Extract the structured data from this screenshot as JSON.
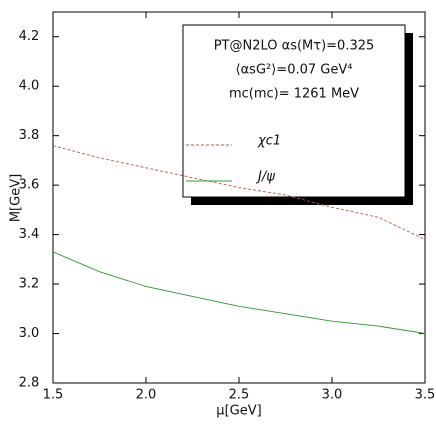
{
  "chart_data": {
    "type": "line",
    "x_label": "μ[GeV]",
    "y_label": "M[GeV]",
    "legend_text": [
      "PT@N2LO αs(Mτ)=0.325",
      "⟨αsG²⟩=0.07 GeV⁴",
      "mc(mc)= 1261 MeV"
    ],
    "x": [
      1.5,
      1.75,
      2.0,
      2.25,
      2.5,
      2.75,
      3.0,
      3.25,
      3.5
    ],
    "series": [
      {
        "name": "χc1",
        "color": "#b85c50",
        "dashed": true,
        "values": [
          3.76,
          3.71,
          3.67,
          3.63,
          3.59,
          3.56,
          3.51,
          3.47,
          3.38
        ]
      },
      {
        "name": "J/ψ",
        "color": "#2a9a2a",
        "dashed": false,
        "values": [
          3.33,
          3.25,
          3.19,
          3.15,
          3.11,
          3.08,
          3.05,
          3.03,
          3.0
        ]
      }
    ],
    "xlim": [
      1.5,
      3.5
    ],
    "xticks": [
      1.5,
      {
        "value": 2,
        "label": "2.0"
      },
      2.5,
      {
        "value": 3,
        "label": "3.0"
      },
      3.5
    ],
    "ylim": [
      2.8,
      4.3
    ],
    "yticks": [
      2.8,
      {
        "value": 3,
        "label": "3.0"
      },
      3.2,
      3.4,
      3.6,
      3.8,
      {
        "value": 4,
        "label": "4.0"
      },
      4.2
    ]
  }
}
